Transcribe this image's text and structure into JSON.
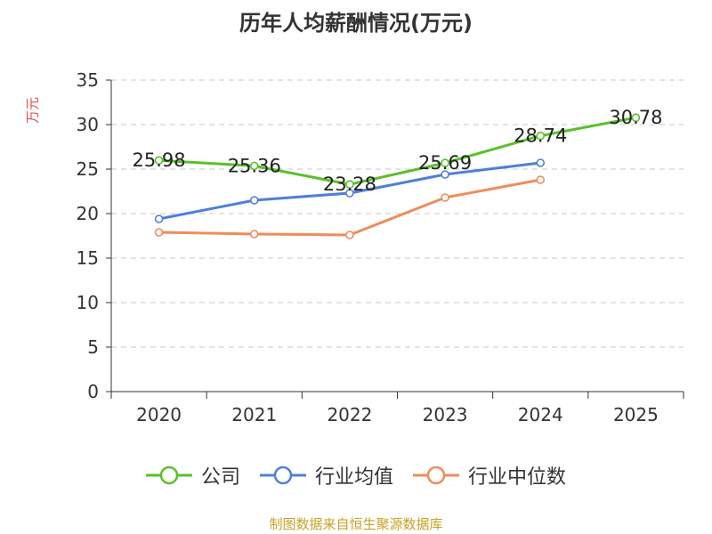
{
  "chart_data": {
    "type": "line",
    "title": "历年人均薪酬情况(万元)",
    "ylabel": "万元",
    "xlabel": "",
    "categories": [
      "2020",
      "2021",
      "2022",
      "2023",
      "2024",
      "2025"
    ],
    "ylim": [
      0,
      35
    ],
    "yticks": [
      0,
      5,
      10,
      15,
      20,
      25,
      30,
      35
    ],
    "grid": true,
    "legend_position": "bottom",
    "series": [
      {
        "name": "公司",
        "color": "#5ac02a",
        "values": [
          25.98,
          25.36,
          23.28,
          25.69,
          28.74,
          30.78
        ],
        "show_labels": true
      },
      {
        "name": "行业均值",
        "color": "#4f7fd8",
        "values": [
          19.4,
          21.5,
          22.3,
          24.4,
          25.7,
          null
        ],
        "show_labels": false
      },
      {
        "name": "行业中位数",
        "color": "#f08c5a",
        "values": [
          17.9,
          17.7,
          17.6,
          21.8,
          23.8,
          null
        ],
        "show_labels": false
      }
    ]
  },
  "source": "制图数据来自恒生聚源数据库"
}
